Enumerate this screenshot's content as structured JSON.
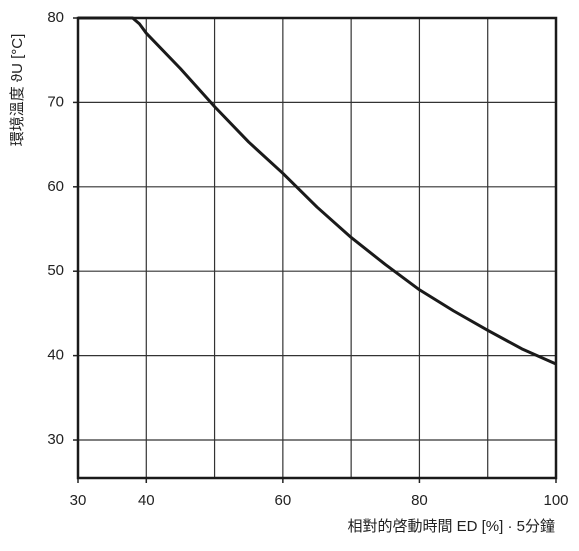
{
  "chart_data": {
    "type": "line",
    "ylabel": "環境溫度  ϑU [°C]",
    "xlabel": "相對的啓動時間  ED [%] · 5分鐘",
    "x": [
      30,
      38,
      39,
      40,
      45,
      50,
      55,
      60,
      65,
      70,
      75,
      80,
      85,
      90,
      95,
      100
    ],
    "series": [
      {
        "color": "#1a1a1a",
        "values": [
          80,
          80,
          79.3,
          78.2,
          74,
          69.5,
          65.3,
          61.6,
          57.6,
          54,
          50.8,
          47.8,
          45.3,
          43,
          40.8,
          39
        ]
      }
    ],
    "xlim": [
      30,
      100
    ],
    "xticks": [
      30,
      40,
      60,
      80,
      100
    ],
    "xgrid": [
      40,
      50,
      60,
      70,
      80,
      90
    ],
    "ylim": [
      25.5,
      80
    ],
    "yticks": [
      30,
      40,
      50,
      60,
      70,
      80
    ],
    "ygrid": [
      30,
      40,
      50,
      60,
      70
    ],
    "grid": true
  }
}
